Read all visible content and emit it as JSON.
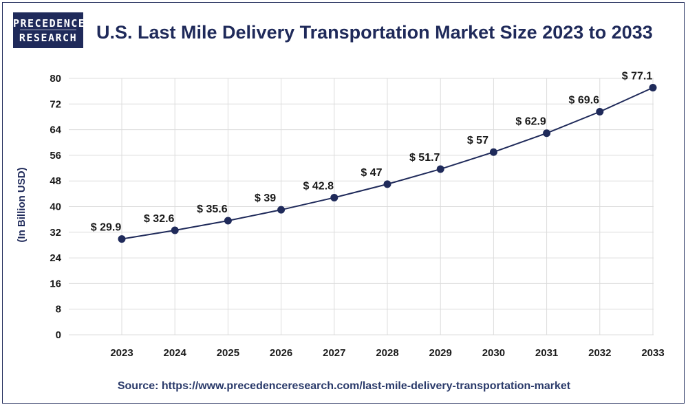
{
  "brand": {
    "line1": "PRECEDENCE",
    "line2": "RESEARCH"
  },
  "title": "U.S. Last Mile Delivery Transportation Market Size 2023 to 2033",
  "source": "Source: https://www.precedenceresearch.com/last-mile-delivery-transportation-market",
  "colors": {
    "navy": "#1f2a5a",
    "grid": "#dcdcdc",
    "line": "#1f2a5a"
  },
  "chart_data": {
    "type": "line",
    "title": "U.S. Last Mile Delivery Transportation Market Size 2023 to 2033",
    "xlabel": "",
    "ylabel": "(In Billion USD)",
    "categories": [
      "2023",
      "2024",
      "2025",
      "2026",
      "2027",
      "2028",
      "2029",
      "2030",
      "2031",
      "2032",
      "2033"
    ],
    "values": [
      29.9,
      32.6,
      35.6,
      39,
      42.8,
      47,
      51.7,
      57,
      62.9,
      69.6,
      77.1
    ],
    "labels": [
      "$ 29.9",
      "$ 32.6",
      "$ 35.6",
      "$ 39",
      "$ 42.8",
      "$ 47",
      "$ 51.7",
      "$ 57",
      "$ 62.9",
      "$ 69.6",
      "$ 77.1"
    ],
    "yticks": [
      "0",
      "8",
      "16",
      "24",
      "32",
      "40",
      "48",
      "56",
      "64",
      "72",
      "80"
    ],
    "ylim": [
      0,
      80
    ],
    "grid": true
  }
}
